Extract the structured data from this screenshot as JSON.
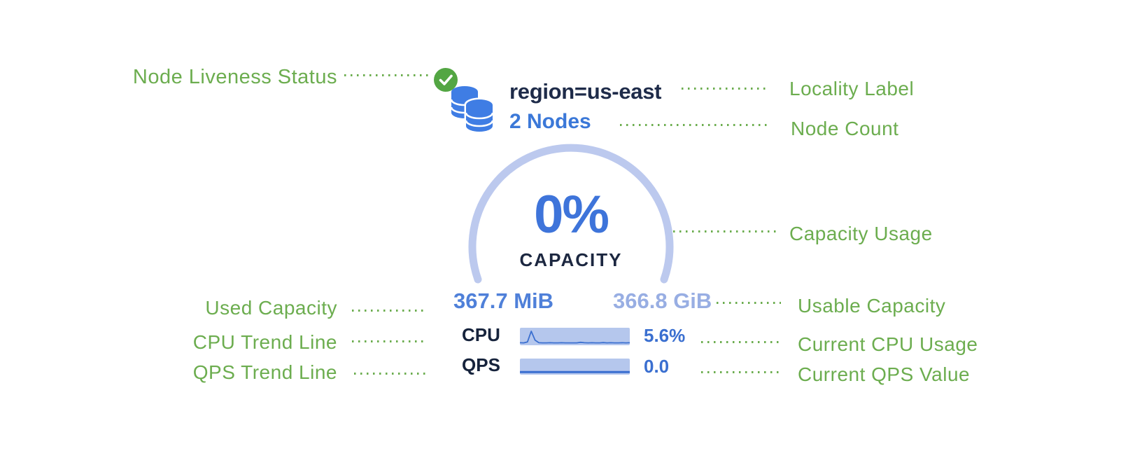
{
  "node_card": {
    "liveness_status": "live",
    "locality_label": "region=us-east",
    "node_count": "2 Nodes",
    "capacity_gauge": {
      "percent": "0%",
      "caption": "CAPACITY",
      "used_capacity": "367.7 MiB",
      "usable_capacity": "366.8 GiB"
    },
    "cpu": {
      "label": "CPU",
      "value": "5.6%",
      "trend": [
        0.06,
        0.05,
        0.12,
        0.92,
        0.25,
        0.06,
        0.05,
        0.05,
        0.06,
        0.05,
        0.05,
        0.06,
        0.05,
        0.05,
        0.05,
        0.05,
        0.09,
        0.06,
        0.05,
        0.06,
        0.05,
        0.05,
        0.07,
        0.05,
        0.06,
        0.05,
        0.05,
        0.06,
        0.05,
        0.06
      ]
    },
    "qps": {
      "label": "QPS",
      "value": "0.0",
      "trend": [
        0.07,
        0.07,
        0.07,
        0.07,
        0.07,
        0.07,
        0.07,
        0.07,
        0.07,
        0.07,
        0.07,
        0.07,
        0.07,
        0.07,
        0.07,
        0.07,
        0.07,
        0.07,
        0.07,
        0.07,
        0.07,
        0.07,
        0.07,
        0.07,
        0.07,
        0.07,
        0.07,
        0.07,
        0.07,
        0.07
      ]
    }
  },
  "annotations": {
    "node_liveness": "Node Liveness Status",
    "locality": "Locality Label",
    "node_count": "Node Count",
    "capacity_usage": "Capacity Usage",
    "used_capacity": "Used Capacity",
    "usable_capacity": "Usable Capacity",
    "cpu_trend": "CPU Trend Line",
    "current_cpu": "Current CPU Usage",
    "qps_trend": "QPS Trend Line",
    "current_qps": "Current QPS Value"
  },
  "colors": {
    "annotation_green": "#6cad4f",
    "check_circle_green": "#53a643",
    "database_icon_blue": "#3f7de4",
    "gauge_arc_light_blue": "#bcc9ee",
    "gauge_percent_blue": "#3e74da",
    "dark_navy_text": "#1c2740",
    "used_capacity_blue": "#4f80d9",
    "usable_capacity_light_blue": "#98aee3",
    "node_count_blue": "#3b78d8",
    "metric_value_blue": "#3a6fd0",
    "bar_fill_light_blue": "#b5c7ed"
  }
}
